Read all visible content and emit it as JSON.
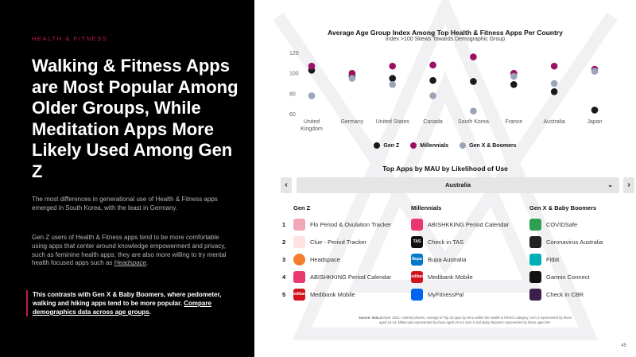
{
  "left": {
    "eyebrow": "HEALTH & FITNESS",
    "headline": "Walking & Fitness Apps are Most Popular Among Older Groups, While Meditation Apps More Likely Used Among Gen Z",
    "para1": "The most differences in generational use of Health & Fitness apps emerged in South Korea, with the least in Germany.",
    "para2_pre": "Gen Z users of Health & Fitness apps tend to be more comfortable using apps that center around knowledge empowerment and privacy, such as feminine health apps; they are also more willing to try mental health focused apps such as ",
    "para2_link": "Headspace",
    "para2_post": ".",
    "callout_pre": "This contrasts with Gen X & Baby Boomers, where pedometer, walking and hiking apps tend to be more popular. ",
    "callout_link": "Compare demographics data across age groups",
    "callout_post": "."
  },
  "colors": {
    "genz": "#1a1a1a",
    "millennials": "#9c1063",
    "genx": "#9aa6b6",
    "accent": "#c2185b"
  },
  "chart_data": {
    "type": "scatter",
    "title": "Average Age Group Index Among Top Health & Fitness Apps Per Country",
    "subtitle": "Index >100 Skews Towards Demographic Group",
    "categories": [
      "United Kingdom",
      "Germany",
      "United States",
      "Canada",
      "South Korea",
      "France",
      "Australia",
      "Japan"
    ],
    "category_labels": [
      [
        "United",
        "Kingdom"
      ],
      [
        "Germany"
      ],
      [
        "United States"
      ],
      [
        "Canada"
      ],
      [
        "South Korea"
      ],
      [
        "France"
      ],
      [
        "Australia"
      ],
      [
        "Japan"
      ]
    ],
    "yticks": [
      120,
      100,
      80,
      60
    ],
    "ylim": [
      55,
      125
    ],
    "series": [
      {
        "name": "Gen Z",
        "key": "genz",
        "values": [
          103,
          97,
          95,
          93,
          92,
          89,
          82,
          64
        ]
      },
      {
        "name": "Millennials",
        "key": "millennials",
        "values": [
          107,
          100,
          107,
          108,
          116,
          100,
          107,
          104
        ]
      },
      {
        "name": "Gen X & Boomers",
        "key": "genx",
        "values": [
          78,
          95,
          89,
          78,
          63,
          97,
          90,
          102
        ]
      }
    ],
    "legend_position": "bottom"
  },
  "top_apps": {
    "title": "Top Apps by MAU by Likelihood of Use",
    "prev_label": "‹",
    "next_label": "›",
    "selected_country": "Australia",
    "chevron": "⌄",
    "ranks": [
      "1",
      "2",
      "3",
      "4",
      "5"
    ],
    "columns": [
      {
        "header": "Gen Z",
        "apps": [
          {
            "name": "Flo Period & Ovulation Tracker",
            "icon": "flo-icon",
            "color": "#f2a7b8"
          },
          {
            "name": "Clue - Period Tracker",
            "icon": "clue-icon",
            "color": "#ffe1e1"
          },
          {
            "name": "Headspace",
            "icon": "headspace-icon",
            "color": "#f47d31"
          },
          {
            "name": "ABISHKKING Period Calendar",
            "icon": "period-calendar-icon",
            "color": "#e8386d"
          },
          {
            "name": "Medibank Mobile",
            "icon": "medibank-icon",
            "color": "#d1121f",
            "text": "medibank"
          }
        ]
      },
      {
        "header": "Millennials",
        "apps": [
          {
            "name": "ABISHKKING Period Calendar",
            "icon": "period-calendar-icon",
            "color": "#e8386d"
          },
          {
            "name": "Check in TAS",
            "icon": "check-in-tas-icon",
            "color": "#111111",
            "text": "TAS"
          },
          {
            "name": "Bupa Australia",
            "icon": "bupa-icon",
            "color": "#0079c8",
            "text": "Bupa"
          },
          {
            "name": "Medibank Mobile",
            "icon": "medibank-icon",
            "color": "#d1121f",
            "text": "medibank"
          },
          {
            "name": "MyFitnessPal",
            "icon": "myfitnesspal-icon",
            "color": "#0066ee"
          }
        ]
      },
      {
        "header": "Gen X & Baby Boomers",
        "apps": [
          {
            "name": "COVIDSafe",
            "icon": "covidsafe-icon",
            "color": "#2e9e52"
          },
          {
            "name": "Coronavirus Australia",
            "icon": "coronavirus-australia-icon",
            "color": "#222222"
          },
          {
            "name": "Fitbit",
            "icon": "fitbit-icon",
            "color": "#00b0b9"
          },
          {
            "name": "Garmin Connect",
            "icon": "garmin-icon",
            "color": "#111111"
          },
          {
            "name": "Check in CBR",
            "icon": "check-in-cbr-icon",
            "color": "#3b1f4d"
          }
        ]
      }
    ]
  },
  "source_label": "Source: data.ai",
  "source": "Note: 2021; Android phones; Average of Top 20 apps by MAU within the Health & Fitness category; Gen Z represented by those aged 16-24; Millennials represented by those aged 25-44; Gen X and Baby Boomers represented by those aged 45+",
  "page_number": "45"
}
